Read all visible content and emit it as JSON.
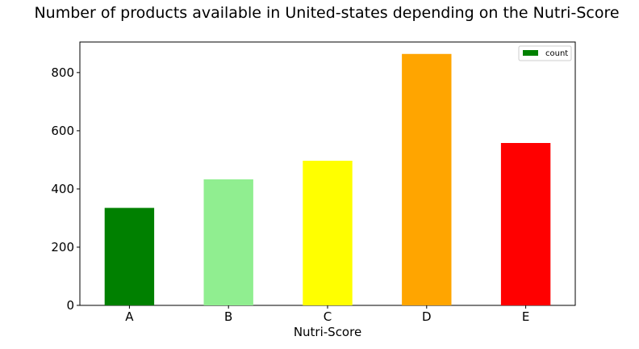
{
  "chart_data": {
    "type": "bar",
    "title": "Number of products available in United-states depending on the Nutri-Score",
    "xlabel": "Nutri-Score",
    "ylabel": "",
    "categories": [
      "A",
      "B",
      "C",
      "D",
      "E"
    ],
    "series": [
      {
        "name": "count",
        "values": [
          335,
          433,
          497,
          864,
          558
        ]
      }
    ],
    "bar_colors": [
      "#008000",
      "#90ee90",
      "#ffff00",
      "#ffa500",
      "#ff0000"
    ],
    "ylim": [
      0,
      905
    ],
    "yticks": [
      0,
      200,
      400,
      600,
      800
    ],
    "grid": false,
    "legend_position": "top-right"
  }
}
